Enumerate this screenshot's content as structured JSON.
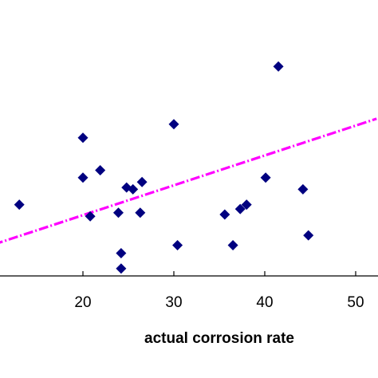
{
  "chart_data": {
    "type": "scatter",
    "xlabel": "actual corrosion rate",
    "ylabel": "",
    "x_ticks": [
      20,
      30,
      40,
      50
    ],
    "x_tick_labels": [
      "20",
      "30",
      "40",
      "50"
    ],
    "grid": false,
    "legend": "none",
    "series": [
      {
        "kind": "points",
        "marker": "diamond",
        "color": "#000080",
        "points": [
          {
            "x": 13.0,
            "y": 2.16
          },
          {
            "x": 20.0,
            "y": 3.25
          },
          {
            "x": 20.0,
            "y": 2.6
          },
          {
            "x": 20.8,
            "y": 1.97
          },
          {
            "x": 21.9,
            "y": 2.72
          },
          {
            "x": 23.9,
            "y": 2.03
          },
          {
            "x": 24.2,
            "y": 1.37
          },
          {
            "x": 24.2,
            "y": 1.12
          },
          {
            "x": 24.8,
            "y": 2.44
          },
          {
            "x": 25.5,
            "y": 2.41
          },
          {
            "x": 26.3,
            "y": 2.03
          },
          {
            "x": 26.5,
            "y": 2.53
          },
          {
            "x": 30.0,
            "y": 3.47
          },
          {
            "x": 30.4,
            "y": 1.5
          },
          {
            "x": 35.6,
            "y": 2.0
          },
          {
            "x": 36.5,
            "y": 1.5
          },
          {
            "x": 37.3,
            "y": 2.09
          },
          {
            "x": 38.0,
            "y": 2.16
          },
          {
            "x": 40.1,
            "y": 2.6
          },
          {
            "x": 41.5,
            "y": 4.41
          },
          {
            "x": 44.2,
            "y": 2.41
          },
          {
            "x": 44.8,
            "y": 1.66
          }
        ]
      },
      {
        "kind": "trendline",
        "style": "dash-dot",
        "color": "#ff00ff",
        "points": [
          {
            "x": 8.5,
            "y": 1.43
          },
          {
            "x": 52.3,
            "y": 3.56
          }
        ]
      }
    ]
  }
}
